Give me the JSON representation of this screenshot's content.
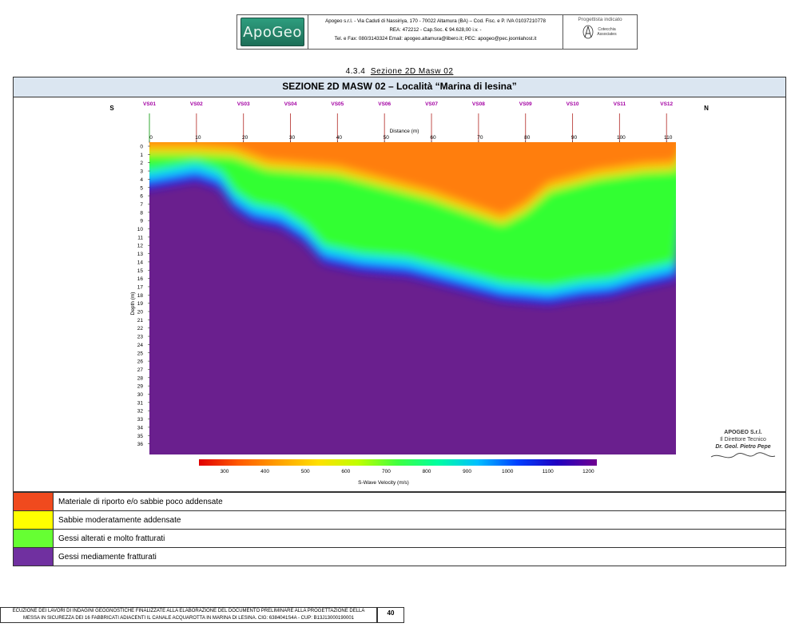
{
  "header": {
    "logo_text": "ApoGeo",
    "company_line1": "Apogeo s.r.l. - Via Caduti di Nassiriya, 170 - 70022 Altamura (BA) – Cod. Fisc. e P. IVA 01037210778",
    "company_line2": "REA: 472212 - Cap.Soc. € 94.628,00 i.v. -",
    "company_line3": "Tel. e Fax: 080/3143324 Email: apogeo.altamura@libero.it; PEC: apogeo@pec.joomlahost.it",
    "designer_label": "Progettista indicato",
    "designer_logo_text": "Cotecchia Associates"
  },
  "section_number": "4.3.4",
  "section_title": "Sezione 2D Masw 02",
  "chart_title": "SEZIONE 2D MASW 02 – Località “Marina di lesina”",
  "chart_data": {
    "type": "heatmap",
    "xlabel": "Distance (m)",
    "ylabel": "Depth (m)",
    "colorbar_label": "S-Wave Velocity (m/s)",
    "colorbar_ticks": [
      "300",
      "400",
      "500",
      "600",
      "700",
      "800",
      "900",
      "1000",
      "1100",
      "1200"
    ],
    "xlim": [
      0,
      112
    ],
    "ylim": [
      0,
      37
    ],
    "x_ticks": [
      "0",
      "10",
      "20",
      "30",
      "40",
      "50",
      "60",
      "70",
      "80",
      "90",
      "100",
      "110"
    ],
    "depth_ticks": [
      "0",
      "1",
      "2",
      "3",
      "4",
      "5",
      "6",
      "7",
      "8",
      "9",
      "10",
      "11",
      "12",
      "13",
      "14",
      "15",
      "16",
      "17",
      "18",
      "19",
      "20",
      "21",
      "22",
      "23",
      "24",
      "25",
      "26",
      "27",
      "28",
      "29",
      "30",
      "31",
      "32",
      "33",
      "34",
      "35",
      "36"
    ],
    "direction_left": "S",
    "direction_right": "N",
    "stations": [
      {
        "name": "VS01",
        "x": 0
      },
      {
        "name": "VS02",
        "x": 10
      },
      {
        "name": "VS03",
        "x": 20
      },
      {
        "name": "VS04",
        "x": 30
      },
      {
        "name": "VS05",
        "x": 40
      },
      {
        "name": "VS06",
        "x": 50
      },
      {
        "name": "VS07",
        "x": 60
      },
      {
        "name": "VS08",
        "x": 70
      },
      {
        "name": "VS09",
        "x": 80
      },
      {
        "name": "VS10",
        "x": 90
      },
      {
        "name": "VS11",
        "x": 100
      },
      {
        "name": "VS12",
        "x": 110
      }
    ],
    "layer_boundaries": {
      "note_units": "x in m, depth in m",
      "orange_base": [
        [
          0,
          0
        ],
        [
          10,
          0
        ],
        [
          18,
          0.3
        ],
        [
          25,
          1.8
        ],
        [
          40,
          2.5
        ],
        [
          50,
          4
        ],
        [
          60,
          5.5
        ],
        [
          70,
          7.5
        ],
        [
          75,
          8.5
        ],
        [
          80,
          7
        ],
        [
          85,
          4.5
        ],
        [
          95,
          3
        ],
        [
          105,
          2.2
        ],
        [
          112,
          2
        ]
      ],
      "green_base": [
        [
          0,
          3.5
        ],
        [
          5,
          3
        ],
        [
          10,
          2.5
        ],
        [
          15,
          3.5
        ],
        [
          18,
          6
        ],
        [
          22,
          7.5
        ],
        [
          28,
          8.2
        ],
        [
          33,
          10
        ],
        [
          37,
          12.5
        ],
        [
          45,
          13.5
        ],
        [
          55,
          14
        ],
        [
          65,
          15.5
        ],
        [
          75,
          17
        ],
        [
          85,
          17.5
        ],
        [
          92,
          16.8
        ],
        [
          98,
          16.5
        ],
        [
          104,
          15.5
        ],
        [
          108,
          15
        ],
        [
          112,
          14.5
        ]
      ]
    }
  },
  "signature": {
    "line1": "APOGEO S.r.l.",
    "line2": "Il Direttore Tecnico",
    "line3": "Dr. Geol. Pietro Pepe"
  },
  "legend": [
    {
      "color": "#f04a1e",
      "label": "Materiale di riporto e/o sabbie poco addensate"
    },
    {
      "color": "#ffff00",
      "label": "Sabbie moderatamente addensate"
    },
    {
      "color": "#66ff33",
      "label": "Gessi alterati e molto fratturati"
    },
    {
      "color": "#7030a0",
      "label": "Gessi mediamente fratturati"
    }
  ],
  "footer": {
    "line1": "ECUZIONE DEI LAVORI DI INDAGINI GEOGNOSTICHE FINALIZZATE ALLA ELABORAZIONE DEL DOCUMENTO PRELIMINARE ALLA PROGETTAZIONE DELLA",
    "line2": "MESSA IN SICUREZZA DEI 16 FABBRICATI ADIACENTI IL CANALE ACQUAROTTA IN MARINA DI LESINA. CIG: 6384041S4A - CUP: B13J13000190001",
    "page": "40"
  }
}
